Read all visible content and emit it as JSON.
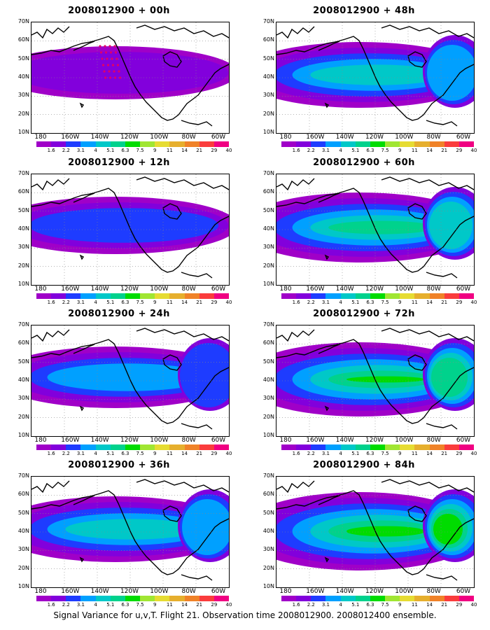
{
  "caption": "Signal Variance for u,v,T. Flight 21. Observation time 2008012900. 2008012400 ensemble.",
  "lat_labels": [
    "70N",
    "60N",
    "50N",
    "40N",
    "30N",
    "20N",
    "10N"
  ],
  "lon_labels": [
    "180",
    "160W",
    "140W",
    "120W",
    "100W",
    "80W",
    "60W"
  ],
  "colorbar": {
    "colors": [
      "#a000c8",
      "#8200dc",
      "#1e3cff",
      "#00a0ff",
      "#00c8c8",
      "#00d28c",
      "#00dc00",
      "#a0e632",
      "#e6dc32",
      "#e6af2d",
      "#f08228",
      "#fa3c3c",
      "#f00082"
    ],
    "labels": [
      "1.6",
      "2.2",
      "3.1",
      "4",
      "5.1",
      "6.3",
      "7.5",
      "9",
      "11",
      "14",
      "21",
      "29",
      "40"
    ]
  },
  "panels": [
    {
      "title": "2008012900 + 00h",
      "intensity": 1,
      "obs_points": true
    },
    {
      "title": "2008012900 + 12h",
      "intensity": 2,
      "obs_points": false
    },
    {
      "title": "2008012900 + 24h",
      "intensity": 3,
      "obs_points": false
    },
    {
      "title": "2008012900 + 36h",
      "intensity": 4,
      "obs_points": false
    },
    {
      "title": "2008012900 + 48h",
      "intensity": 4,
      "obs_points": false
    },
    {
      "title": "2008012900 + 60h",
      "intensity": 5,
      "obs_points": false
    },
    {
      "title": "2008012900 + 72h",
      "intensity": 6,
      "obs_points": false
    },
    {
      "title": "2008012900 + 84h",
      "intensity": 7,
      "obs_points": false
    }
  ]
}
